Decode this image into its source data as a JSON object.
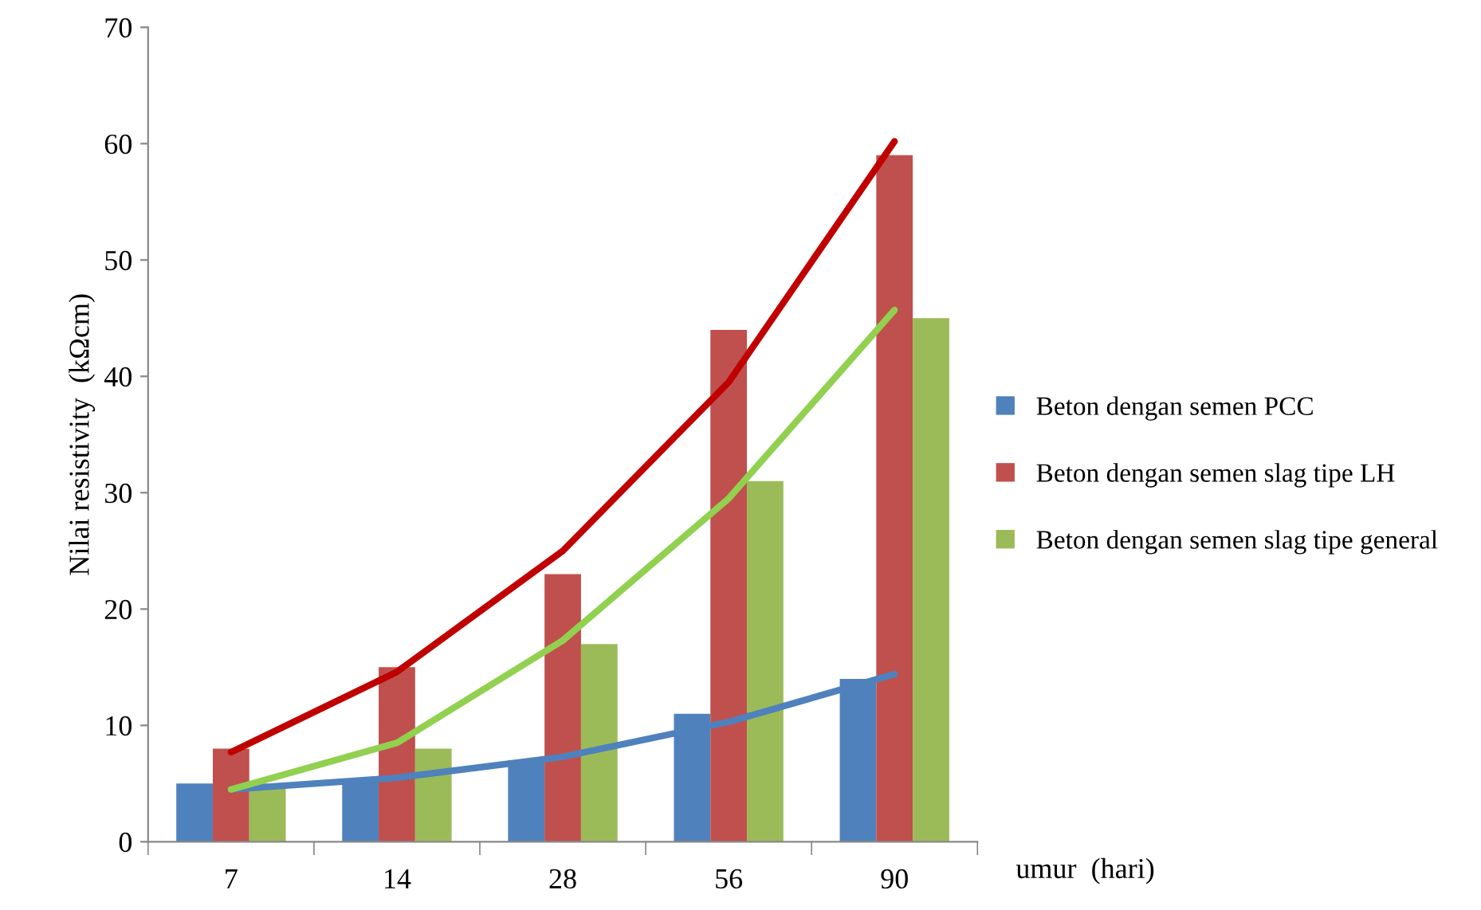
{
  "chart_data": {
    "type": "bar",
    "xlabel": "umur  (hari)",
    "ylabel": "Nilai resistivity  (kΩcm)",
    "categories": [
      "7",
      "14",
      "28",
      "56",
      "90"
    ],
    "series": [
      {
        "name": "Beton dengan semen PCC",
        "color": "#4f81bd",
        "values": [
          5,
          5.3,
          7,
          11,
          14
        ]
      },
      {
        "name": "Beton dengan semen slag tipe LH",
        "color": "#c0504d",
        "values": [
          8,
          15,
          23,
          44,
          59
        ]
      },
      {
        "name": "Beton dengan semen slag tipe general",
        "color": "#9bbb59",
        "values": [
          5,
          8,
          17,
          31,
          45
        ]
      },
      {
        "type": "line",
        "color": "#4f81bd",
        "x": [
          "7",
          "14",
          "28",
          "56",
          "90"
        ],
        "values": [
          4.5,
          5.5,
          7.3,
          10.3,
          14.4
        ]
      },
      {
        "type": "line",
        "color": "#c00000",
        "x": [
          "7",
          "14",
          "28",
          "56",
          "90"
        ],
        "values": [
          7.7,
          14.6,
          25,
          39.5,
          60.2
        ]
      },
      {
        "type": "line",
        "color": "#92d050",
        "x": [
          "7",
          "14",
          "28",
          "56",
          "90"
        ],
        "values": [
          4.5,
          8.5,
          17.3,
          29.5,
          45.7
        ]
      }
    ],
    "ylim": [
      0,
      70
    ],
    "yticks": [
      0,
      10,
      20,
      30,
      40,
      50,
      60,
      70
    ],
    "grid": false,
    "legend": "right"
  }
}
